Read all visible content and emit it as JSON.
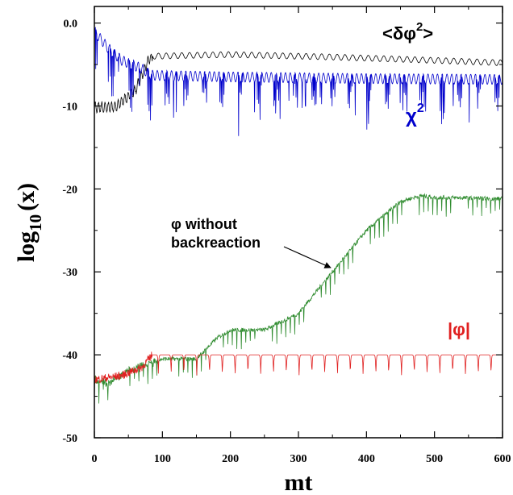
{
  "chart_data": {
    "type": "line",
    "xlabel": "mt",
    "ylabel": "log",
    "ylabel_sub": "10",
    "ylabel_tail": "(x)",
    "xlim": [
      0,
      600
    ],
    "ylim": [
      -50,
      2
    ],
    "x_ticks": [
      0,
      100,
      200,
      300,
      400,
      500,
      600
    ],
    "y_ticks": [
      {
        "value": 0,
        "label": "0.0"
      },
      {
        "value": -10,
        "label": "-10"
      },
      {
        "value": -20,
        "label": "-20"
      },
      {
        "value": -30,
        "label": "-30"
      },
      {
        "value": -40,
        "label": "-40"
      },
      {
        "value": -50,
        "label": "-50"
      }
    ],
    "grid": false,
    "series": [
      {
        "name": "<δφ²>",
        "color": "#000000",
        "points": [
          [
            0,
            -10
          ],
          [
            30,
            -10
          ],
          [
            60,
            -8
          ],
          [
            80,
            -4.2
          ],
          [
            85,
            -4
          ],
          [
            200,
            -3.8
          ],
          [
            350,
            -4.1
          ],
          [
            500,
            -4.5
          ],
          [
            600,
            -4.8
          ]
        ]
      },
      {
        "name": "χ²",
        "color": "#0000cc",
        "points": [
          [
            0,
            -1
          ],
          [
            20,
            -3
          ],
          [
            40,
            -4.5
          ],
          [
            70,
            -5.5
          ],
          [
            85,
            -6.3
          ],
          [
            200,
            -6.5
          ],
          [
            400,
            -6.7
          ],
          [
            600,
            -6.8
          ]
        ]
      },
      {
        "name": "φ without backreaction",
        "color": "#2e8b2e",
        "points": [
          [
            0,
            -43
          ],
          [
            20,
            -43.5
          ],
          [
            50,
            -42
          ],
          [
            100,
            -40.5
          ],
          [
            150,
            -40.5
          ],
          [
            180,
            -38
          ],
          [
            200,
            -37
          ],
          [
            250,
            -37
          ],
          [
            300,
            -35
          ],
          [
            350,
            -30
          ],
          [
            400,
            -25
          ],
          [
            450,
            -21.5
          ],
          [
            480,
            -20.8
          ],
          [
            500,
            -21
          ],
          [
            600,
            -21.2
          ]
        ]
      },
      {
        "name": "|φ|",
        "color": "#e02020",
        "points": [
          [
            0,
            -43
          ],
          [
            40,
            -42.5
          ],
          [
            70,
            -41.5
          ],
          [
            85,
            -40
          ],
          [
            600,
            -40
          ]
        ]
      }
    ],
    "annotations": [
      {
        "text": "<δφ",
        "sup": "2",
        "tail": ">"
      },
      {
        "text": "χ",
        "sup": "2"
      },
      {
        "line1": "φ without",
        "line2": "backreaction"
      },
      {
        "text": "|φ|"
      }
    ]
  }
}
